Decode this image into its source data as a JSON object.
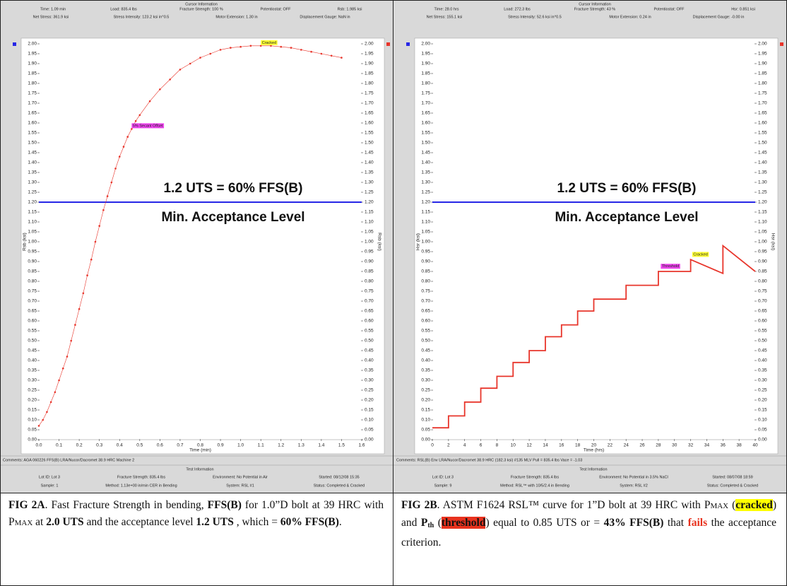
{
  "chart_data": [
    {
      "type": "line",
      "xlabel": "Time (min)",
      "ylabel": "Rsb (ksi)",
      "color": "#e8352b",
      "markers": true,
      "grid": false,
      "x": [
        0.0,
        0.02,
        0.04,
        0.06,
        0.08,
        0.1,
        0.12,
        0.14,
        0.16,
        0.18,
        0.2,
        0.22,
        0.24,
        0.26,
        0.28,
        0.3,
        0.32,
        0.34,
        0.36,
        0.38,
        0.4,
        0.42,
        0.44,
        0.46,
        0.48,
        0.5,
        0.55,
        0.6,
        0.65,
        0.7,
        0.75,
        0.8,
        0.85,
        0.9,
        0.95,
        1.0,
        1.05,
        1.1,
        1.15,
        1.2,
        1.25,
        1.3,
        1.35,
        1.4,
        1.45,
        1.5
      ],
      "values": [
        0.07,
        0.1,
        0.14,
        0.19,
        0.24,
        0.3,
        0.36,
        0.42,
        0.5,
        0.58,
        0.66,
        0.74,
        0.83,
        0.91,
        1.0,
        1.08,
        1.16,
        1.23,
        1.3,
        1.37,
        1.43,
        1.48,
        1.53,
        1.57,
        1.61,
        1.64,
        1.71,
        1.77,
        1.82,
        1.87,
        1.9,
        1.93,
        1.95,
        1.97,
        1.98,
        1.985,
        1.99,
        1.99,
        1.99,
        1.985,
        1.98,
        1.97,
        1.96,
        1.95,
        1.94,
        1.93
      ],
      "xlim": [
        0,
        1.6
      ],
      "xticks": [
        {
          "value": 0,
          "label": "0.0"
        },
        {
          "value": 0.1,
          "label": "0.1"
        },
        {
          "value": 0.2,
          "label": "0.2"
        },
        {
          "value": 0.3,
          "label": "0.3"
        },
        {
          "value": 0.4,
          "label": "0.4"
        },
        {
          "value": 0.5,
          "label": "0.5"
        },
        {
          "value": 0.6,
          "label": "0.6"
        },
        {
          "value": 0.7,
          "label": "0.7"
        },
        {
          "value": 0.8,
          "label": "0.8"
        },
        {
          "value": 0.9,
          "label": "0.9"
        },
        {
          "value": 1.0,
          "label": "1.0"
        },
        {
          "value": 1.1,
          "label": "1.1"
        },
        {
          "value": 1.2,
          "label": "1.2"
        },
        {
          "value": 1.3,
          "label": "1.3"
        },
        {
          "value": 1.4,
          "label": "1.4"
        },
        {
          "value": 1.5,
          "label": "1.5"
        },
        {
          "value": 1.6,
          "label": "1.6"
        }
      ],
      "ylim": [
        0,
        2.0
      ],
      "yticks": [
        {
          "value": 0,
          "label": "0.00"
        },
        {
          "value": 0.05,
          "label": "0.05"
        },
        {
          "value": 0.1,
          "label": "0.10"
        },
        {
          "value": 0.15,
          "label": "0.15"
        },
        {
          "value": 0.2,
          "label": "0.20"
        },
        {
          "value": 0.25,
          "label": "0.25"
        },
        {
          "value": 0.3,
          "label": "0.30"
        },
        {
          "value": 0.35,
          "label": "0.35"
        },
        {
          "value": 0.4,
          "label": "0.40"
        },
        {
          "value": 0.45,
          "label": "0.45"
        },
        {
          "value": 0.5,
          "label": "0.50"
        },
        {
          "value": 0.55,
          "label": "0.55"
        },
        {
          "value": 0.6,
          "label": "0.60"
        },
        {
          "value": 0.65,
          "label": "0.65"
        },
        {
          "value": 0.7,
          "label": "0.70"
        },
        {
          "value": 0.75,
          "label": "0.75"
        },
        {
          "value": 0.8,
          "label": "0.80"
        },
        {
          "value": 0.85,
          "label": "0.85"
        },
        {
          "value": 0.9,
          "label": "0.90"
        },
        {
          "value": 0.95,
          "label": "0.95"
        },
        {
          "value": 1.0,
          "label": "1.00"
        },
        {
          "value": 1.05,
          "label": "1.05"
        },
        {
          "value": 1.1,
          "label": "1.10"
        },
        {
          "value": 1.15,
          "label": "1.15"
        },
        {
          "value": 1.2,
          "label": "1.20"
        },
        {
          "value": 1.25,
          "label": "1.25"
        },
        {
          "value": 1.3,
          "label": "1.30"
        },
        {
          "value": 1.35,
          "label": "1.35"
        },
        {
          "value": 1.4,
          "label": "1.40"
        },
        {
          "value": 1.45,
          "label": "1.45"
        },
        {
          "value": 1.5,
          "label": "1.50"
        },
        {
          "value": 1.55,
          "label": "1.55"
        },
        {
          "value": 1.6,
          "label": "1.60"
        },
        {
          "value": 1.65,
          "label": "1.65"
        },
        {
          "value": 1.7,
          "label": "1.70"
        },
        {
          "value": 1.75,
          "label": "1.75"
        },
        {
          "value": 1.8,
          "label": "1.80"
        },
        {
          "value": 1.85,
          "label": "1.85"
        },
        {
          "value": 1.9,
          "label": "1.90"
        },
        {
          "value": 1.95,
          "label": "1.95"
        },
        {
          "value": 2.0,
          "label": "2.00"
        }
      ],
      "reference_line": {
        "value": 1.2,
        "color": "#2727e6",
        "label": "1.2 UTS = 60% FFS(B)",
        "sublabel": "Min. Acceptance Level"
      },
      "annotations": [
        {
          "text": "Cracked",
          "x": 1.1,
          "y": 1.99,
          "color": "#ffff33"
        },
        {
          "text": "5% Secant Offset",
          "x": 0.46,
          "y": 1.57,
          "color": "#ee44ee"
        }
      ]
    },
    {
      "type": "line",
      "xlabel": "Time (hrs)",
      "ylabel": "Hsr (ksi)",
      "color": "#e8352b",
      "markers": false,
      "grid": false,
      "x": [
        0,
        2,
        2,
        4,
        4,
        6,
        6,
        8,
        8,
        10,
        10,
        12,
        12,
        14,
        14,
        16,
        16,
        18,
        18,
        20,
        20,
        24,
        24,
        28,
        28,
        32,
        32,
        36,
        36,
        40
      ],
      "values": [
        0.06,
        0.06,
        0.12,
        0.12,
        0.19,
        0.19,
        0.26,
        0.26,
        0.32,
        0.32,
        0.39,
        0.39,
        0.45,
        0.45,
        0.52,
        0.52,
        0.58,
        0.58,
        0.65,
        0.65,
        0.71,
        0.71,
        0.78,
        0.78,
        0.85,
        0.85,
        0.91,
        0.84,
        0.98,
        0.85
      ],
      "xlim": [
        0,
        40
      ],
      "xticks": [
        0,
        2,
        4,
        6,
        8,
        10,
        12,
        14,
        16,
        18,
        20,
        22,
        24,
        26,
        28,
        30,
        32,
        34,
        36,
        38,
        40
      ],
      "ylim": [
        0,
        2.0
      ],
      "yticks": [
        {
          "value": 0,
          "label": "0.00"
        },
        {
          "value": 0.05,
          "label": "0.05"
        },
        {
          "value": 0.1,
          "label": "0.10"
        },
        {
          "value": 0.15,
          "label": "0.15"
        },
        {
          "value": 0.2,
          "label": "0.20"
        },
        {
          "value": 0.25,
          "label": "0.25"
        },
        {
          "value": 0.3,
          "label": "0.30"
        },
        {
          "value": 0.35,
          "label": "0.35"
        },
        {
          "value": 0.4,
          "label": "0.40"
        },
        {
          "value": 0.45,
          "label": "0.45"
        },
        {
          "value": 0.5,
          "label": "0.50"
        },
        {
          "value": 0.55,
          "label": "0.55"
        },
        {
          "value": 0.6,
          "label": "0.60"
        },
        {
          "value": 0.65,
          "label": "0.65"
        },
        {
          "value": 0.7,
          "label": "0.70"
        },
        {
          "value": 0.75,
          "label": "0.75"
        },
        {
          "value": 0.8,
          "label": "0.80"
        },
        {
          "value": 0.85,
          "label": "0.85"
        },
        {
          "value": 0.9,
          "label": "0.90"
        },
        {
          "value": 0.95,
          "label": "0.95"
        },
        {
          "value": 1.0,
          "label": "1.00"
        },
        {
          "value": 1.05,
          "label": "1.05"
        },
        {
          "value": 1.1,
          "label": "1.10"
        },
        {
          "value": 1.15,
          "label": "1.15"
        },
        {
          "value": 1.2,
          "label": "1.20"
        },
        {
          "value": 1.25,
          "label": "1.25"
        },
        {
          "value": 1.3,
          "label": "1.30"
        },
        {
          "value": 1.35,
          "label": "1.35"
        },
        {
          "value": 1.4,
          "label": "1.40"
        },
        {
          "value": 1.45,
          "label": "1.45"
        },
        {
          "value": 1.5,
          "label": "1.50"
        },
        {
          "value": 1.55,
          "label": "1.55"
        },
        {
          "value": 1.6,
          "label": "1.60"
        },
        {
          "value": 1.65,
          "label": "1.65"
        },
        {
          "value": 1.7,
          "label": "1.70"
        },
        {
          "value": 1.75,
          "label": "1.75"
        },
        {
          "value": 1.8,
          "label": "1.80"
        },
        {
          "value": 1.85,
          "label": "1.85"
        },
        {
          "value": 1.9,
          "label": "1.90"
        },
        {
          "value": 1.95,
          "label": "1.95"
        },
        {
          "value": 2.0,
          "label": "2.00"
        }
      ],
      "reference_line": {
        "value": 1.2,
        "color": "#2727e6",
        "label": "1.2 UTS = 60% FFS(B)",
        "sublabel": "Min. Acceptance Level"
      },
      "annotations": [
        {
          "text": "Threshold",
          "x": 28.3,
          "y": 0.86,
          "color": "#ee44ee"
        },
        {
          "text": "Cracked",
          "x": 32.2,
          "y": 0.92,
          "color": "#ffff33"
        }
      ]
    }
  ],
  "panels": [
    {
      "header": {
        "title": "Cursor Information",
        "fields": [
          "Time: 1.09 min",
          "Load: 835.4 lbs",
          "Fracture Strength: 100 %",
          "Potentiostat: OFF",
          "Rsb: 1.985 ksi",
          "Net Stress: 361.9 ksi",
          "Stress Intensity: 123.2 ksi in^0.5",
          "Motor Extension: 1.30 in",
          "Displacement Gauge: NaN in"
        ]
      },
      "comments": "Comments: AGA 060226     FFS(B)     LRA/Nucor/Dacromet     38.9 HRC     Machine 2",
      "test_info": {
        "title": "Test Information",
        "fields": [
          "Lot ID: Lot 3",
          "Fracture Strength: 835.4 lbs",
          "Environment: No Potential in Air",
          "Started: 08/12/08 15:35",
          "Sample: 1",
          "Method: 1.13e+00 in/min CER in Bending",
          "System: RSL #1",
          "Status: Completed & Cracked"
        ]
      },
      "caption": [
        "FIG 2A",
        ". Fast Fracture Strength in bending, ",
        "FFS(B)",
        " for 1.0”D bolt at 39 HRC with P",
        "MAX",
        " at ",
        "2.0 UTS",
        " and the acceptance level ",
        "1.2 UTS",
        " , which = ",
        "60% FFS(B)",
        "."
      ]
    },
    {
      "header": {
        "title": "Cursor Information",
        "fields": [
          "Time: 28.0 hrs",
          "Load: 272.3 lbs",
          "Fracture Strength: 43 %",
          "Potentiostat: OFF",
          "Hsr: 0.851 ksi",
          "Net Stress: 155.1 ksi",
          "Stress Intensity: 52.6 ksi in^0.5",
          "Motor Extension: 0.24 in",
          "Displacement Gauge: -0.00 in"
        ]
      },
      "comments": "Comments: RSL(B) Env     LRA/Nucor/Dacromet     38.9 HRC (182.3 ksi)     #135 MLV     Pull = 835.4 lbs     Vace = -1.03",
      "test_info": {
        "title": "Test Information",
        "fields": [
          "Lot ID: Lot 3",
          "Fracture Strength: 835.4 lbs",
          "Environment: No Potential in 3.5% NaCl",
          "Started: 08/07/08 18:59",
          "Sample: 9",
          "Method: RSL™ with 10/5/2.4 in Bending",
          "System: RSL #2",
          "Status: Completed & Cracked"
        ]
      },
      "caption": [
        "FIG 2B",
        ". ASTM F1624 RSL™ curve for 1”D bolt at 39 HRC with P",
        "MAX",
        " (",
        "cracked",
        ") and ",
        "P",
        "th",
        " (",
        "threshold",
        ") equal to 0.85 UTS or = ",
        "43% FFS(B)",
        " that ",
        "fails",
        " the acceptance criterion."
      ]
    }
  ]
}
